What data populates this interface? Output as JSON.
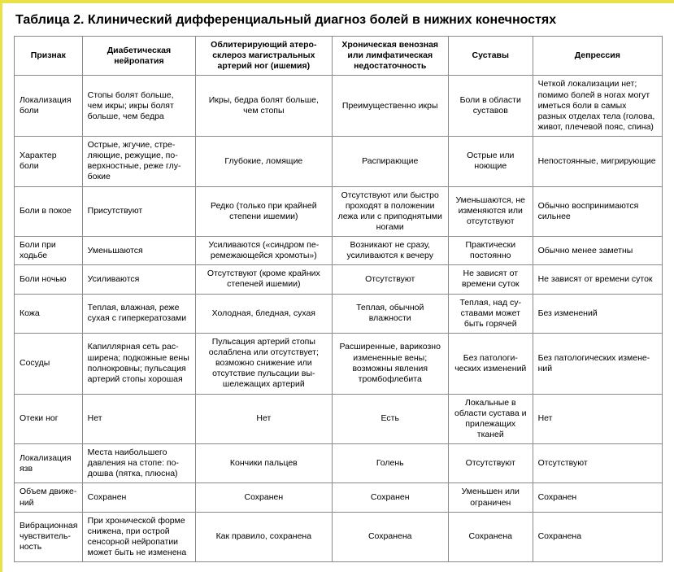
{
  "title": "Таблица 2. Клинический дифференциальный диагноз болей в нижних конечностях",
  "style": {
    "accent_color": "#e9e145",
    "border_color": "#8a8a8a",
    "text_color": "#000000",
    "background_color": "#ffffff",
    "title_fontsize_pt": 12,
    "cell_fontsize_pt": 8,
    "column_widths_pct": [
      10.5,
      17.5,
      21,
      18,
      13,
      20
    ],
    "column_align": [
      "left",
      "left",
      "center",
      "center",
      "center",
      "left"
    ]
  },
  "columns": [
    "Признак",
    "Диабетическая нейропатия",
    "Облитерирующий атеро­склероз магистральных артерий ног (ишемия)",
    "Хроническая венозная или лимфатическая недостаточность",
    "Суставы",
    "Депрессия"
  ],
  "rows": [
    {
      "label": "Локализация боли",
      "cells": [
        "Стопы болят больше, чем икры; икры болят больше, чем бедра",
        "Икры, бедра болят больше, чем стопы",
        "Преимущественно ик­ры",
        "Боли в области суставов",
        "Четкой локализации нет; помимо болей в ногах могут иметься боли в самых разных отделах тела (голова, живот, плечевой пояс, спина)"
      ]
    },
    {
      "label": "Характер боли",
      "cells": [
        "Острые, жгучие, стре­ляющие, режущие, по­верхностные, реже глу­бокие",
        "Глубокие, ломящие",
        "Распирающие",
        "Острые или ноющие",
        "Непостоянные, мигрирую­щие"
      ]
    },
    {
      "label": "Боли в покое",
      "cells": [
        "Присутствуют",
        "Редко (только при крайней степени ишемии)",
        "Отсутствуют или бы­стро проходят в поло­жении лежа или с при­поднятыми ногами",
        "Уменьшаются, не изменяются или отсут­ствуют",
        "Обычно воспринимаются сильнее"
      ]
    },
    {
      "label": "Боли при ходьбе",
      "cells": [
        "Уменьшаются",
        "Усиливаются («синдром пе­ремежающейся хромоты»)",
        "Возникают не сразу, усиливаются к вечеру",
        "Практически постоянно",
        "Обычно менее заметны"
      ]
    },
    {
      "label": "Боли ночью",
      "cells": [
        "Усиливаются",
        "Отсутствуют (кроме край­них степеней ишемии)",
        "Отсутствуют",
        "Не зависят от времени суток",
        "Не зависят от времени суток"
      ]
    },
    {
      "label": "Кожа",
      "cells": [
        "Теплая, влажная, реже сухая с гиперкератоза­ми",
        "Холодная, бледная, сухая",
        "Теплая, обычной влажности",
        "Теплая, над су­ставами может быть горячей",
        "Без изменений"
      ]
    },
    {
      "label": "Сосуды",
      "cells": [
        "Капиллярная сеть рас­ширена; подкожные ве­ны полнокровны; пуль­сация артерий стопы хорошая",
        "Пульсация артерий стопы ослаблена или отсутствует; возможно снижение или отсутствие пульсации вы­шележащих артерий",
        "Расширенные, вари­козно измененные ве­ны; возможны явле­ния тромбофлебита",
        "Без патологи­ческих измене­ний",
        "Без патологических измене­ний"
      ]
    },
    {
      "label": "Отеки ног",
      "cells": [
        "Нет",
        "Нет",
        "Есть",
        "Локальные в области суста­ва и прилежа­щих тканей",
        "Нет"
      ]
    },
    {
      "label": "Локализация язв",
      "cells": [
        "Места наибольшего давления на стопе: по­дошва (пятка, плюсна)",
        "Кончики пальцев",
        "Голень",
        "Отсутствуют",
        "Отсутствуют"
      ]
    },
    {
      "label": "Объем движе­ний",
      "cells": [
        "Сохранен",
        "Сохранен",
        "Сохранен",
        "Уменьшен или ограничен",
        "Сохранен"
      ]
    },
    {
      "label": "Вибрационная чувствитель­ность",
      "cells": [
        "При хронической форме снижена, при острой сенсорной нейропатии может быть не изменена",
        "Как правило, сохранена",
        "Сохранена",
        "Сохранена",
        "Сохранена"
      ]
    }
  ]
}
